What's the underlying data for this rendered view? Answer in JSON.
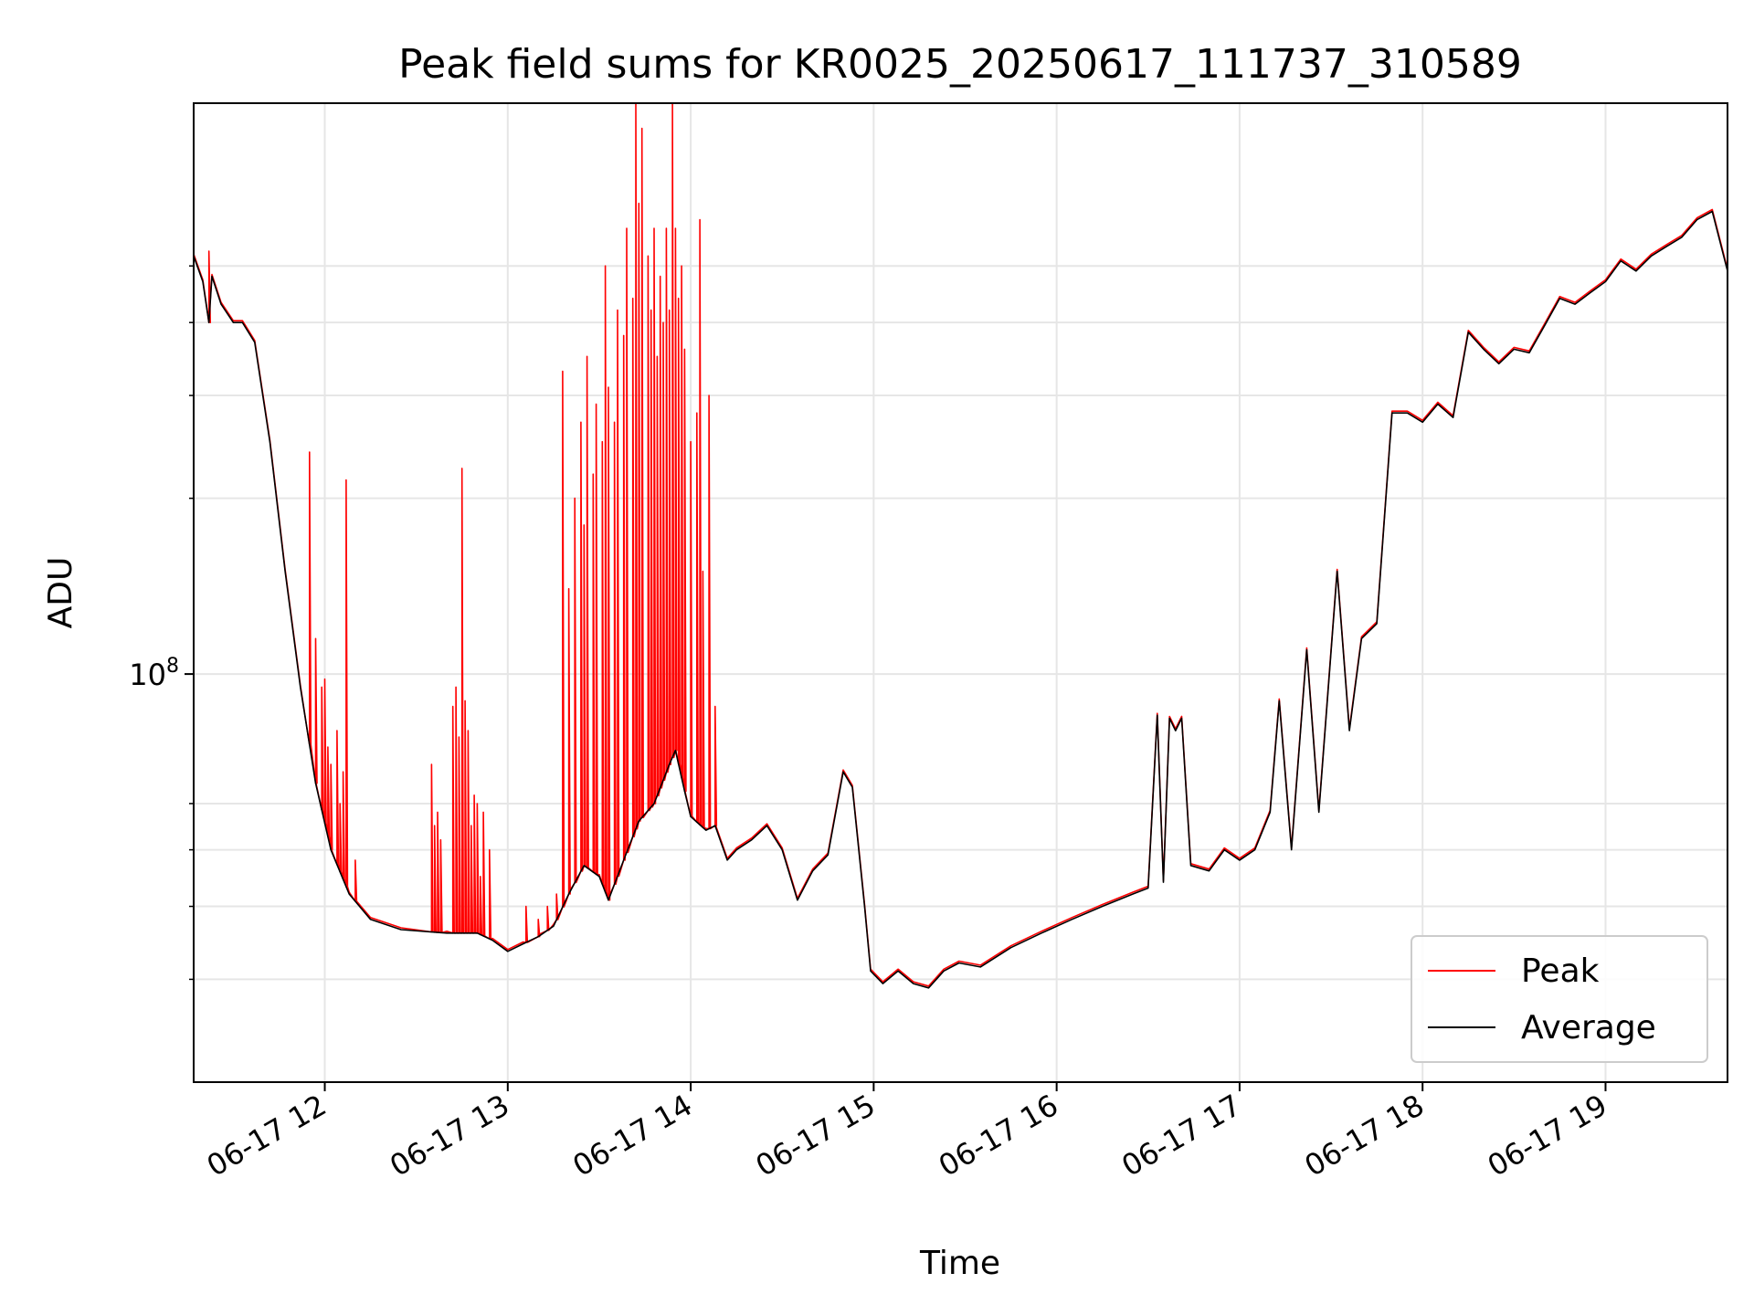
{
  "chart_data": {
    "type": "line",
    "title": "Peak field sums for KR0025_20250617_111737_310589",
    "xlabel": "Time",
    "ylabel": "ADU",
    "x_axis_type": "datetime",
    "xlim": [
      "2025-06-17 11:17",
      "2025-06-17 19:40"
    ],
    "ylim": [
      20000000,
      950000000
    ],
    "y_scale": "log",
    "grid": true,
    "legend_position": "lower-right",
    "x_ticks": [
      {
        "value": "2025-06-17 12:00",
        "label": "06-17 12"
      },
      {
        "value": "2025-06-17 13:00",
        "label": "06-17 13"
      },
      {
        "value": "2025-06-17 14:00",
        "label": "06-17 14"
      },
      {
        "value": "2025-06-17 15:00",
        "label": "06-17 15"
      },
      {
        "value": "2025-06-17 16:00",
        "label": "06-17 16"
      },
      {
        "value": "2025-06-17 17:00",
        "label": "06-17 17"
      },
      {
        "value": "2025-06-17 18:00",
        "label": "06-17 18"
      },
      {
        "value": "2025-06-17 19:00",
        "label": "06-17 19"
      }
    ],
    "y_ticks": [
      {
        "value": 100000000,
        "label_base": "10",
        "label_exp": "8"
      }
    ],
    "y_minor_ticks": [
      30000000,
      40000000,
      50000000,
      60000000,
      200000000,
      300000000,
      400000000,
      500000000
    ],
    "series": [
      {
        "name": "Average",
        "color": "#000000",
        "points": [
          [
            "2025-06-17 11:17",
            520000000
          ],
          [
            "2025-06-17 11:20",
            470000000
          ],
          [
            "2025-06-17 11:22",
            400000000
          ],
          [
            "2025-06-17 11:23",
            480000000
          ],
          [
            "2025-06-17 11:26",
            430000000
          ],
          [
            "2025-06-17 11:30",
            400000000
          ],
          [
            "2025-06-17 11:33",
            400000000
          ],
          [
            "2025-06-17 11:37",
            370000000
          ],
          [
            "2025-06-17 11:42",
            250000000
          ],
          [
            "2025-06-17 11:47",
            150000000
          ],
          [
            "2025-06-17 11:52",
            95000000
          ],
          [
            "2025-06-17 11:57",
            65000000
          ],
          [
            "2025-06-17 12:02",
            50000000
          ],
          [
            "2025-06-17 12:08",
            42000000
          ],
          [
            "2025-06-17 12:15",
            38000000
          ],
          [
            "2025-06-17 12:25",
            36500000
          ],
          [
            "2025-06-17 12:40",
            36000000
          ],
          [
            "2025-06-17 12:50",
            36000000
          ],
          [
            "2025-06-17 12:55",
            35000000
          ],
          [
            "2025-06-17 13:00",
            33500000
          ],
          [
            "2025-06-17 13:05",
            34500000
          ],
          [
            "2025-06-17 13:10",
            35500000
          ],
          [
            "2025-06-17 13:15",
            37000000
          ],
          [
            "2025-06-17 13:20",
            42000000
          ],
          [
            "2025-06-17 13:25",
            47000000
          ],
          [
            "2025-06-17 13:30",
            45000000
          ],
          [
            "2025-06-17 13:33",
            41000000
          ],
          [
            "2025-06-17 13:38",
            48000000
          ],
          [
            "2025-06-17 13:43",
            56000000
          ],
          [
            "2025-06-17 13:48",
            60000000
          ],
          [
            "2025-06-17 13:53",
            70000000
          ],
          [
            "2025-06-17 13:55",
            74000000
          ],
          [
            "2025-06-17 13:58",
            63000000
          ],
          [
            "2025-06-17 14:00",
            57000000
          ],
          [
            "2025-06-17 14:05",
            54000000
          ],
          [
            "2025-06-17 14:08",
            55000000
          ],
          [
            "2025-06-17 14:12",
            48000000
          ],
          [
            "2025-06-17 14:15",
            50000000
          ],
          [
            "2025-06-17 14:20",
            52000000
          ],
          [
            "2025-06-17 14:25",
            55000000
          ],
          [
            "2025-06-17 14:30",
            50000000
          ],
          [
            "2025-06-17 14:35",
            41000000
          ],
          [
            "2025-06-17 14:40",
            46000000
          ],
          [
            "2025-06-17 14:45",
            49000000
          ],
          [
            "2025-06-17 14:50",
            68000000
          ],
          [
            "2025-06-17 14:53",
            64000000
          ],
          [
            "2025-06-17 14:57",
            40000000
          ],
          [
            "2025-06-17 14:59",
            31000000
          ],
          [
            "2025-06-17 15:03",
            29500000
          ],
          [
            "2025-06-17 15:08",
            31000000
          ],
          [
            "2025-06-17 15:13",
            29500000
          ],
          [
            "2025-06-17 15:18",
            29000000
          ],
          [
            "2025-06-17 15:23",
            31000000
          ],
          [
            "2025-06-17 15:28",
            32000000
          ],
          [
            "2025-06-17 15:35",
            31500000
          ],
          [
            "2025-06-17 15:45",
            34000000
          ],
          [
            "2025-06-17 15:55",
            36000000
          ],
          [
            "2025-06-17 16:05",
            38000000
          ],
          [
            "2025-06-17 16:15",
            40000000
          ],
          [
            "2025-06-17 16:25",
            42000000
          ],
          [
            "2025-06-17 16:30",
            43000000
          ],
          [
            "2025-06-17 16:33",
            85000000
          ],
          [
            "2025-06-17 16:35",
            44000000
          ],
          [
            "2025-06-17 16:37",
            84000000
          ],
          [
            "2025-06-17 16:39",
            80000000
          ],
          [
            "2025-06-17 16:41",
            84000000
          ],
          [
            "2025-06-17 16:44",
            47000000
          ],
          [
            "2025-06-17 16:50",
            46000000
          ],
          [
            "2025-06-17 16:55",
            50000000
          ],
          [
            "2025-06-17 17:00",
            48000000
          ],
          [
            "2025-06-17 17:05",
            50000000
          ],
          [
            "2025-06-17 17:10",
            58000000
          ],
          [
            "2025-06-17 17:13",
            90000000
          ],
          [
            "2025-06-17 17:17",
            50000000
          ],
          [
            "2025-06-17 17:22",
            110000000
          ],
          [
            "2025-06-17 17:26",
            58000000
          ],
          [
            "2025-06-17 17:32",
            150000000
          ],
          [
            "2025-06-17 17:36",
            80000000
          ],
          [
            "2025-06-17 17:40",
            115000000
          ],
          [
            "2025-06-17 17:45",
            122000000
          ],
          [
            "2025-06-17 17:50",
            280000000
          ],
          [
            "2025-06-17 17:55",
            280000000
          ],
          [
            "2025-06-17 18:00",
            270000000
          ],
          [
            "2025-06-17 18:05",
            290000000
          ],
          [
            "2025-06-17 18:10",
            275000000
          ],
          [
            "2025-06-17 18:15",
            385000000
          ],
          [
            "2025-06-17 18:20",
            360000000
          ],
          [
            "2025-06-17 18:25",
            340000000
          ],
          [
            "2025-06-17 18:30",
            360000000
          ],
          [
            "2025-06-17 18:35",
            355000000
          ],
          [
            "2025-06-17 18:40",
            395000000
          ],
          [
            "2025-06-17 18:45",
            440000000
          ],
          [
            "2025-06-17 18:50",
            430000000
          ],
          [
            "2025-06-17 18:55",
            450000000
          ],
          [
            "2025-06-17 19:00",
            470000000
          ],
          [
            "2025-06-17 19:05",
            510000000
          ],
          [
            "2025-06-17 19:10",
            490000000
          ],
          [
            "2025-06-17 19:15",
            520000000
          ],
          [
            "2025-06-17 19:20",
            540000000
          ],
          [
            "2025-06-17 19:25",
            560000000
          ],
          [
            "2025-06-17 19:30",
            600000000
          ],
          [
            "2025-06-17 19:35",
            620000000
          ],
          [
            "2025-06-17 19:40",
            490000000
          ]
        ]
      },
      {
        "name": "Peak",
        "color": "#ff0000",
        "spikes": [
          [
            "2025-06-17 11:22",
            530000000
          ],
          [
            "2025-06-17 11:55",
            240000000
          ],
          [
            "2025-06-17 11:57",
            115000000
          ],
          [
            "2025-06-17 11:59",
            95000000
          ],
          [
            "2025-06-17 12:00",
            98000000
          ],
          [
            "2025-06-17 12:01",
            75000000
          ],
          [
            "2025-06-17 12:02",
            70000000
          ],
          [
            "2025-06-17 12:04",
            80000000
          ],
          [
            "2025-06-17 12:05",
            60000000
          ],
          [
            "2025-06-17 12:06",
            68000000
          ],
          [
            "2025-06-17 12:07",
            215000000
          ],
          [
            "2025-06-17 12:10",
            48000000
          ],
          [
            "2025-06-17 12:35",
            70000000
          ],
          [
            "2025-06-17 12:36",
            55000000
          ],
          [
            "2025-06-17 12:37",
            58000000
          ],
          [
            "2025-06-17 12:38",
            52000000
          ],
          [
            "2025-06-17 12:42",
            88000000
          ],
          [
            "2025-06-17 12:43",
            95000000
          ],
          [
            "2025-06-17 12:44",
            78000000
          ],
          [
            "2025-06-17 12:45",
            225000000
          ],
          [
            "2025-06-17 12:46",
            90000000
          ],
          [
            "2025-06-17 12:47",
            80000000
          ],
          [
            "2025-06-17 12:48",
            55000000
          ],
          [
            "2025-06-17 12:49",
            62000000
          ],
          [
            "2025-06-17 12:50",
            60000000
          ],
          [
            "2025-06-17 12:51",
            45000000
          ],
          [
            "2025-06-17 12:52",
            58000000
          ],
          [
            "2025-06-17 12:54",
            50000000
          ],
          [
            "2025-06-17 13:06",
            40000000
          ],
          [
            "2025-06-17 13:10",
            38000000
          ],
          [
            "2025-06-17 13:13",
            40000000
          ],
          [
            "2025-06-17 13:16",
            42000000
          ],
          [
            "2025-06-17 13:18",
            330000000
          ],
          [
            "2025-06-17 13:20",
            140000000
          ],
          [
            "2025-06-17 13:22",
            200000000
          ],
          [
            "2025-06-17 13:24",
            270000000
          ],
          [
            "2025-06-17 13:25",
            180000000
          ],
          [
            "2025-06-17 13:26",
            350000000
          ],
          [
            "2025-06-17 13:28",
            220000000
          ],
          [
            "2025-06-17 13:29",
            290000000
          ],
          [
            "2025-06-17 13:31",
            250000000
          ],
          [
            "2025-06-17 13:32",
            500000000
          ],
          [
            "2025-06-17 13:33",
            310000000
          ],
          [
            "2025-06-17 13:35",
            270000000
          ],
          [
            "2025-06-17 13:36",
            420000000
          ],
          [
            "2025-06-17 13:38",
            380000000
          ],
          [
            "2025-06-17 13:39",
            580000000
          ],
          [
            "2025-06-17 13:41",
            440000000
          ],
          [
            "2025-06-17 13:42",
            950000000
          ],
          [
            "2025-06-17 13:43",
            640000000
          ],
          [
            "2025-06-17 13:44",
            860000000
          ],
          [
            "2025-06-17 13:46",
            520000000
          ],
          [
            "2025-06-17 13:47",
            420000000
          ],
          [
            "2025-06-17 13:48",
            580000000
          ],
          [
            "2025-06-17 13:49",
            350000000
          ],
          [
            "2025-06-17 13:50",
            480000000
          ],
          [
            "2025-06-17 13:51",
            400000000
          ],
          [
            "2025-06-17 13:52",
            580000000
          ],
          [
            "2025-06-17 13:53",
            420000000
          ],
          [
            "2025-06-17 13:54",
            950000000
          ],
          [
            "2025-06-17 13:55",
            580000000
          ],
          [
            "2025-06-17 13:56",
            440000000
          ],
          [
            "2025-06-17 13:57",
            500000000
          ],
          [
            "2025-06-17 13:58",
            360000000
          ],
          [
            "2025-06-17 14:00",
            250000000
          ],
          [
            "2025-06-17 14:02",
            280000000
          ],
          [
            "2025-06-17 14:03",
            600000000
          ],
          [
            "2025-06-17 14:04",
            150000000
          ],
          [
            "2025-06-17 14:06",
            300000000
          ],
          [
            "2025-06-17 14:08",
            88000000
          ]
        ]
      }
    ]
  }
}
